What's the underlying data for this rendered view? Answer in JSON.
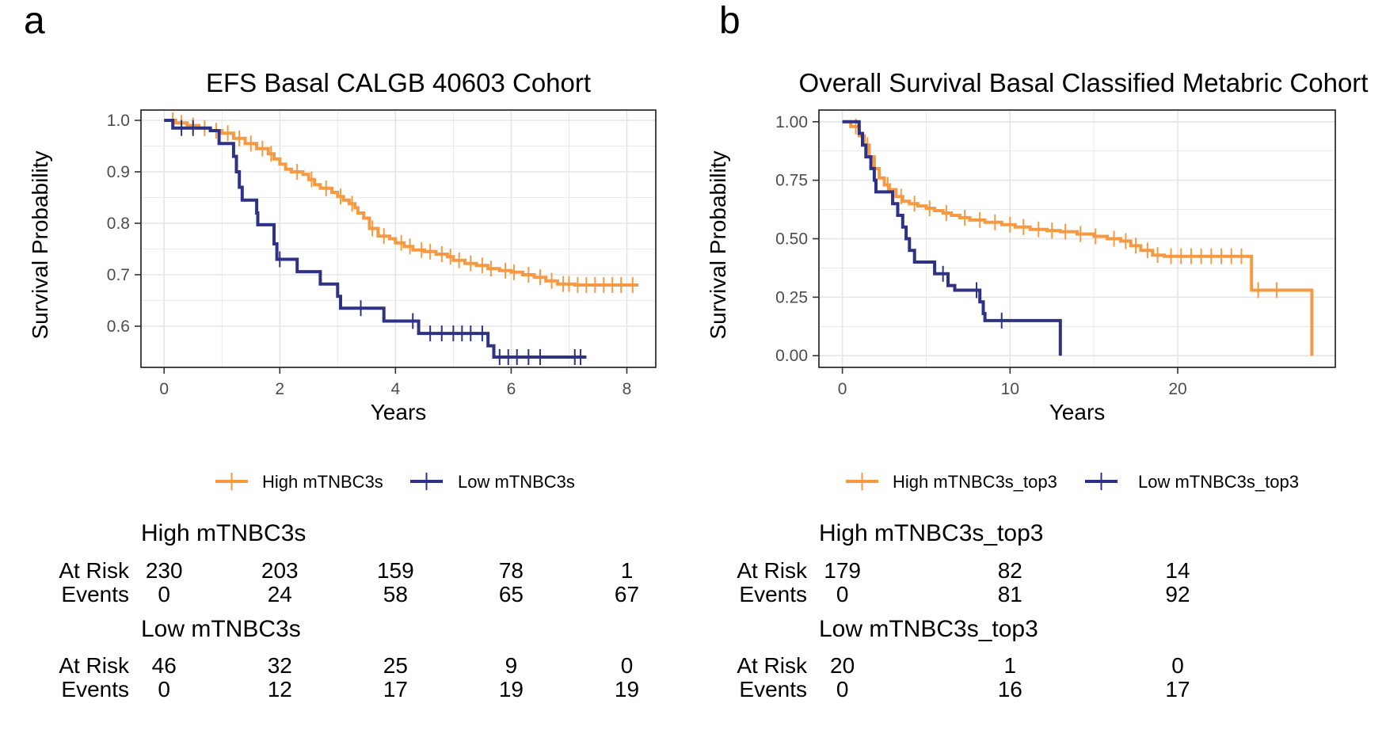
{
  "colors": {
    "high": "#F59A42",
    "low": "#2E3284",
    "grid": "#E5E5E5",
    "frame": "#1A1A1A",
    "tick_text": "#4D4D4D"
  },
  "chart_data": [
    {
      "panel_label": "a",
      "type": "line",
      "subtype": "kaplan-meier",
      "title": "EFS Basal CALGB 40603 Cohort",
      "xlabel": "Years",
      "ylabel": "Survival Probability",
      "xlim": [
        -0.4,
        8.5
      ],
      "ylim": [
        0.52,
        1.02
      ],
      "xticks": [
        0,
        2,
        4,
        6,
        8
      ],
      "xtick_labels": [
        "0",
        "2",
        "4",
        "6",
        "8"
      ],
      "yticks": [
        0.6,
        0.7,
        0.8,
        0.9,
        1.0
      ],
      "ytick_labels": [
        "0.6",
        "0.7",
        "0.8",
        "0.9",
        "1.0"
      ],
      "series": [
        {
          "name": "High mTNBC3s",
          "color_key": "high",
          "steps": [
            [
              0,
              1.0
            ],
            [
              0.2,
              0.995
            ],
            [
              0.4,
              0.99
            ],
            [
              0.6,
              0.985
            ],
            [
              0.8,
              0.98
            ],
            [
              1.0,
              0.975
            ],
            [
              1.2,
              0.965
            ],
            [
              1.4,
              0.955
            ],
            [
              1.6,
              0.945
            ],
            [
              1.8,
              0.935
            ],
            [
              1.9,
              0.925
            ],
            [
              2.0,
              0.915
            ],
            [
              2.1,
              0.905
            ],
            [
              2.2,
              0.9
            ],
            [
              2.4,
              0.895
            ],
            [
              2.5,
              0.885
            ],
            [
              2.6,
              0.875
            ],
            [
              2.7,
              0.868
            ],
            [
              2.9,
              0.86
            ],
            [
              3.0,
              0.852
            ],
            [
              3.1,
              0.845
            ],
            [
              3.2,
              0.838
            ],
            [
              3.3,
              0.83
            ],
            [
              3.35,
              0.82
            ],
            [
              3.45,
              0.81
            ],
            [
              3.55,
              0.79
            ],
            [
              3.7,
              0.775
            ],
            [
              3.9,
              0.77
            ],
            [
              4.0,
              0.762
            ],
            [
              4.15,
              0.755
            ],
            [
              4.3,
              0.748
            ],
            [
              4.5,
              0.745
            ],
            [
              4.7,
              0.74
            ],
            [
              4.9,
              0.735
            ],
            [
              5.0,
              0.728
            ],
            [
              5.2,
              0.722
            ],
            [
              5.4,
              0.718
            ],
            [
              5.6,
              0.712
            ],
            [
              5.8,
              0.708
            ],
            [
              6.0,
              0.705
            ],
            [
              6.2,
              0.7
            ],
            [
              6.4,
              0.695
            ],
            [
              6.6,
              0.688
            ],
            [
              6.8,
              0.682
            ],
            [
              7.1,
              0.68
            ],
            [
              8.2,
              0.68
            ]
          ],
          "censor_times": [
            0.15,
            0.3,
            0.5,
            0.7,
            0.9,
            1.1,
            1.3,
            1.5,
            1.7,
            1.85,
            2.3,
            2.55,
            2.8,
            3.05,
            3.25,
            3.6,
            3.8,
            4.1,
            4.25,
            4.45,
            4.6,
            4.8,
            4.95,
            5.1,
            5.3,
            5.5,
            5.65,
            5.9,
            6.05,
            6.3,
            6.5,
            6.7,
            6.9,
            7.0,
            7.15,
            7.3,
            7.45,
            7.6,
            7.75,
            7.9,
            8.1
          ]
        },
        {
          "name": "Low mTNBC3s",
          "color_key": "low",
          "steps": [
            [
              0,
              1.0
            ],
            [
              0.15,
              0.985
            ],
            [
              0.8,
              0.98
            ],
            [
              0.95,
              0.955
            ],
            [
              1.2,
              0.93
            ],
            [
              1.25,
              0.9
            ],
            [
              1.3,
              0.87
            ],
            [
              1.35,
              0.845
            ],
            [
              1.6,
              0.82
            ],
            [
              1.62,
              0.797
            ],
            [
              1.9,
              0.76
            ],
            [
              1.95,
              0.73
            ],
            [
              2.3,
              0.706
            ],
            [
              2.7,
              0.682
            ],
            [
              3.0,
              0.658
            ],
            [
              3.05,
              0.635
            ],
            [
              3.8,
              0.61
            ],
            [
              4.4,
              0.586
            ],
            [
              5.6,
              0.562
            ],
            [
              5.7,
              0.54
            ],
            [
              7.3,
              0.54
            ]
          ],
          "censor_times": [
            0.3,
            0.5,
            2.0,
            3.4,
            4.3,
            4.6,
            4.8,
            5.0,
            5.15,
            5.3,
            5.5,
            5.8,
            5.95,
            6.1,
            6.3,
            6.5,
            7.1,
            7.2
          ]
        }
      ],
      "risk_table": {
        "groups": [
          {
            "name": "High mTNBC3s",
            "at_risk": [
              "230",
              "203",
              "159",
              "78",
              "1"
            ],
            "events": [
              "0",
              "24",
              "58",
              "65",
              "67"
            ]
          },
          {
            "name": "Low mTNBC3s",
            "at_risk": [
              "46",
              "32",
              "25",
              "9",
              "0"
            ],
            "events": [
              "0",
              "12",
              "17",
              "19",
              "19"
            ]
          }
        ],
        "row_labels": {
          "at_risk": "At Risk",
          "events": "Events"
        }
      }
    },
    {
      "panel_label": "b",
      "type": "line",
      "subtype": "kaplan-meier",
      "title": "Overall Survival Basal Classified Metabric Cohort",
      "xlabel": "Years",
      "ylabel": "Survival Probability",
      "xlim": [
        -1.4,
        29.4
      ],
      "ylim": [
        -0.05,
        1.05
      ],
      "xticks": [
        0,
        10,
        20
      ],
      "xtick_labels": [
        "0",
        "10",
        "20"
      ],
      "yticks": [
        0.0,
        0.25,
        0.5,
        0.75,
        1.0
      ],
      "ytick_labels": [
        "0.00",
        "0.25",
        "0.50",
        "0.75",
        "1.00"
      ],
      "series": [
        {
          "name": "High mTNBC3s_top3",
          "color_key": "high",
          "steps": [
            [
              0,
              1.0
            ],
            [
              0.5,
              0.98
            ],
            [
              1.0,
              0.94
            ],
            [
              1.3,
              0.9
            ],
            [
              1.6,
              0.85
            ],
            [
              1.9,
              0.8
            ],
            [
              2.2,
              0.76
            ],
            [
              2.5,
              0.73
            ],
            [
              2.8,
              0.71
            ],
            [
              3.2,
              0.68
            ],
            [
              3.6,
              0.66
            ],
            [
              4.0,
              0.65
            ],
            [
              4.5,
              0.64
            ],
            [
              5.0,
              0.63
            ],
            [
              5.5,
              0.62
            ],
            [
              6.0,
              0.61
            ],
            [
              6.5,
              0.6
            ],
            [
              7.0,
              0.59
            ],
            [
              7.6,
              0.58
            ],
            [
              8.5,
              0.57
            ],
            [
              9.5,
              0.56
            ],
            [
              10.3,
              0.55
            ],
            [
              11.2,
              0.54
            ],
            [
              12.2,
              0.535
            ],
            [
              13.0,
              0.53
            ],
            [
              14.0,
              0.52
            ],
            [
              15.0,
              0.51
            ],
            [
              15.8,
              0.5
            ],
            [
              16.6,
              0.49
            ],
            [
              17.2,
              0.47
            ],
            [
              17.8,
              0.45
            ],
            [
              18.5,
              0.43
            ],
            [
              19.2,
              0.425
            ],
            [
              24.4,
              0.28
            ],
            [
              28.0,
              0.0
            ]
          ],
          "censor_times": [
            0.8,
            1.5,
            2.7,
            3.5,
            4.3,
            5.2,
            6.2,
            7.3,
            8.2,
            9.1,
            10.0,
            10.8,
            11.7,
            12.5,
            13.3,
            14.2,
            15.1,
            16.2,
            16.9,
            17.5,
            18.2,
            18.8,
            19.6,
            20.2,
            20.8,
            21.4,
            22.0,
            22.6,
            23.2,
            23.8,
            24.8,
            25.9
          ]
        },
        {
          "name": "Low mTNBC3s_top3",
          "color_key": "low",
          "steps": [
            [
              0,
              1.0
            ],
            [
              1.0,
              0.95
            ],
            [
              1.2,
              0.9
            ],
            [
              1.4,
              0.85
            ],
            [
              1.7,
              0.8
            ],
            [
              1.9,
              0.75
            ],
            [
              2.0,
              0.7
            ],
            [
              3.0,
              0.65
            ],
            [
              3.3,
              0.6
            ],
            [
              3.6,
              0.55
            ],
            [
              3.8,
              0.5
            ],
            [
              4.0,
              0.45
            ],
            [
              4.3,
              0.4
            ],
            [
              5.5,
              0.35
            ],
            [
              6.3,
              0.3
            ],
            [
              6.7,
              0.28
            ],
            [
              8.2,
              0.23
            ],
            [
              8.4,
              0.18
            ],
            [
              8.5,
              0.15
            ],
            [
              13.0,
              0.0
            ]
          ],
          "censor_times": [
            6.0,
            8.0,
            9.5
          ]
        }
      ],
      "risk_table": {
        "groups": [
          {
            "name": "High mTNBC3s_top3",
            "at_risk": [
              "179",
              "82",
              "14"
            ],
            "events": [
              "0",
              "81",
              "92"
            ]
          },
          {
            "name": "Low mTNBC3s_top3",
            "at_risk": [
              "20",
              "1",
              "0"
            ],
            "events": [
              "0",
              "16",
              "17"
            ]
          }
        ],
        "row_labels": {
          "at_risk": "At Risk",
          "events": "Events"
        }
      }
    }
  ]
}
